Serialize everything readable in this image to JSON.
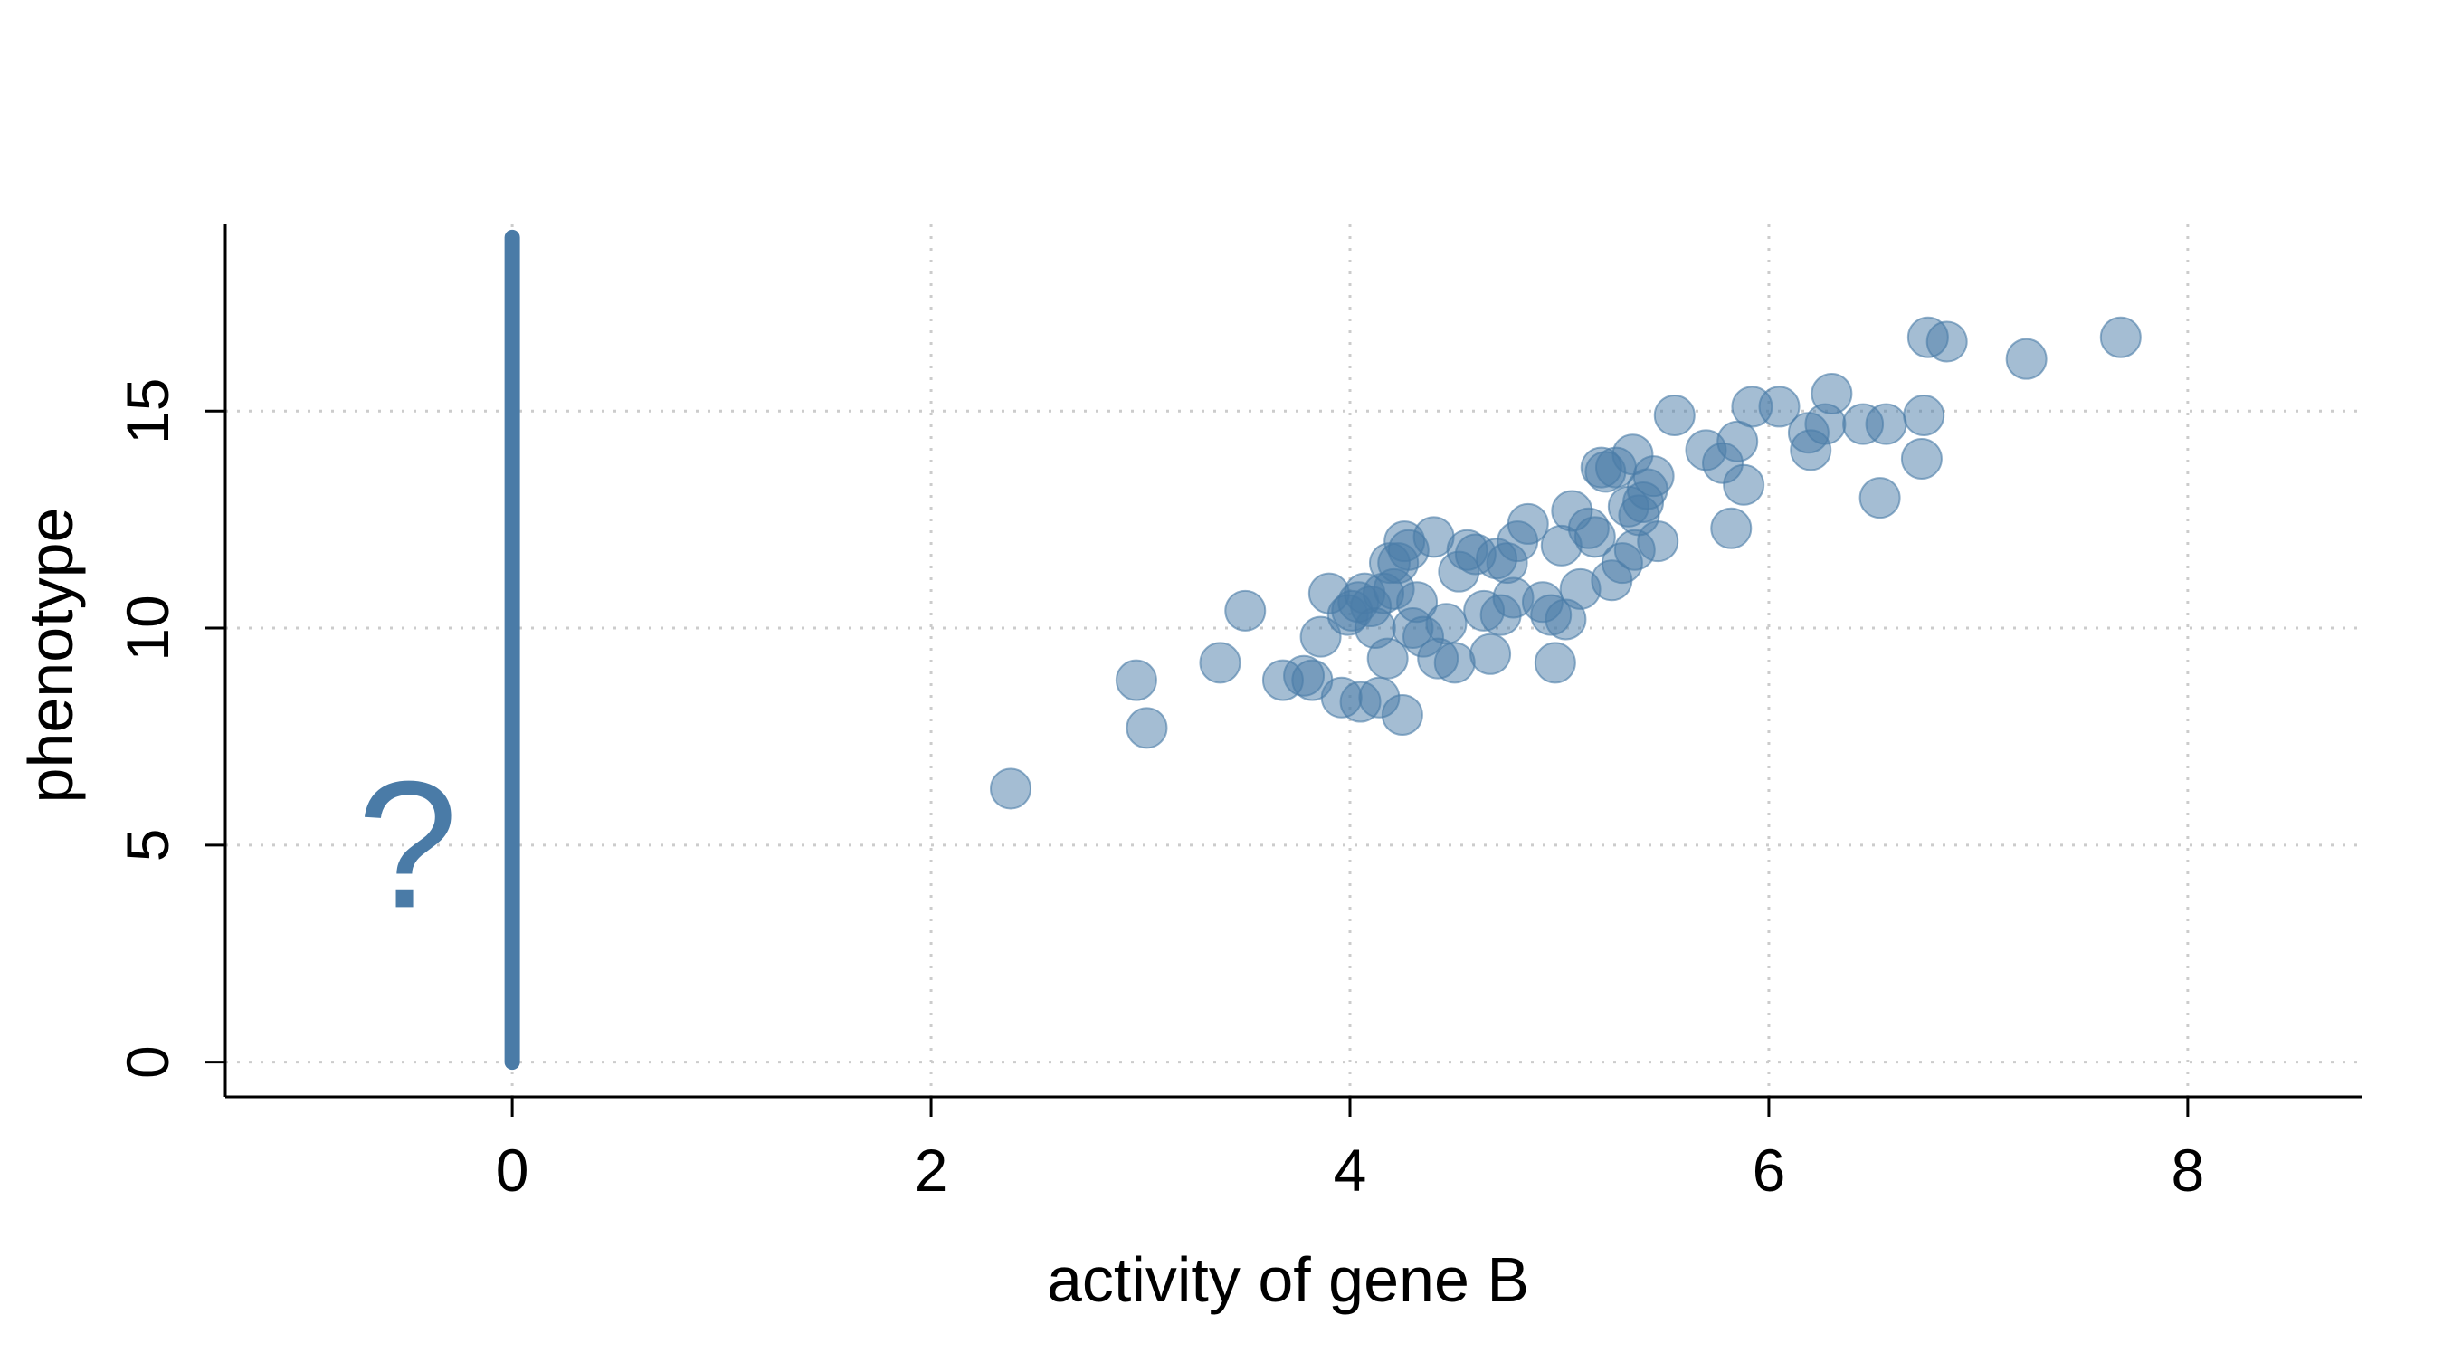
{
  "chart_data": {
    "type": "scatter",
    "title": "",
    "xlabel": "activity of gene B",
    "ylabel": "phenotype",
    "xlim": [
      -1.37,
      8.83
    ],
    "ylim": [
      -0.8,
      19.3
    ],
    "xticks": [
      0,
      2,
      4,
      6,
      8
    ],
    "yticks": [
      0,
      5,
      10,
      15
    ],
    "grid": "dotted",
    "legend": "none",
    "annotation": "?",
    "annotation_position": {
      "x": -0.5,
      "y": 5
    },
    "colors": {
      "points": "#4a7ba7",
      "vertical_line": "#4a7ba7",
      "annotation": "#4a7ba7",
      "grid": "#cccccc",
      "axes": "#000000"
    },
    "vertical_line": {
      "x": 0,
      "y_from": 0,
      "y_to": 19
    },
    "series": [
      {
        "x": [
          2.38,
          2.98,
          3.03,
          3.38,
          3.5,
          3.68,
          3.78,
          3.82,
          3.86,
          3.9,
          3.96,
          3.99,
          4.01,
          4.04,
          4.05,
          4.07,
          4.1,
          4.12,
          4.14,
          4.16,
          4.18,
          4.19,
          4.21,
          4.23,
          4.25,
          4.26,
          4.28,
          4.3,
          4.32,
          4.35,
          4.4,
          4.42,
          4.46,
          4.5,
          4.52,
          4.56,
          4.6,
          4.64,
          4.67,
          4.7,
          4.72,
          4.75,
          4.78,
          4.8,
          4.85,
          4.92,
          4.96,
          4.98,
          5.01,
          5.03,
          5.06,
          5.1,
          5.14,
          5.17,
          5.2,
          5.22,
          5.25,
          5.27,
          5.3,
          5.33,
          5.35,
          5.36,
          5.38,
          5.4,
          5.42,
          5.45,
          5.47,
          5.55,
          5.7,
          5.78,
          5.82,
          5.85,
          5.88,
          5.92,
          6.05,
          6.19,
          6.2,
          6.27,
          6.3,
          6.45,
          6.53,
          6.56,
          6.73,
          6.74,
          6.76,
          6.85,
          7.23,
          7.68
        ],
        "y": [
          6.3,
          8.8,
          7.7,
          9.2,
          10.4,
          8.8,
          8.9,
          8.8,
          9.8,
          10.8,
          8.4,
          10.3,
          10.4,
          10.6,
          8.3,
          10.8,
          10.5,
          10.0,
          8.4,
          10.8,
          9.3,
          11.5,
          10.9,
          11.5,
          8.0,
          12.0,
          11.8,
          10.0,
          10.6,
          9.8,
          12.1,
          9.3,
          10.1,
          9.2,
          11.3,
          11.8,
          11.7,
          10.4,
          9.4,
          11.6,
          10.3,
          11.5,
          10.7,
          12.0,
          12.4,
          10.6,
          10.3,
          9.2,
          11.9,
          10.2,
          12.7,
          10.9,
          12.3,
          12.1,
          13.7,
          13.6,
          11.1,
          13.7,
          11.5,
          12.8,
          14.0,
          11.8,
          12.6,
          12.9,
          13.2,
          13.5,
          12.0,
          14.9,
          14.1,
          13.8,
          12.3,
          14.3,
          13.3,
          15.1,
          15.1,
          14.5,
          14.1,
          14.7,
          15.4,
          14.7,
          13.0,
          14.7,
          13.9,
          14.9,
          16.7,
          16.6,
          16.2,
          16.7
        ]
      }
    ]
  }
}
